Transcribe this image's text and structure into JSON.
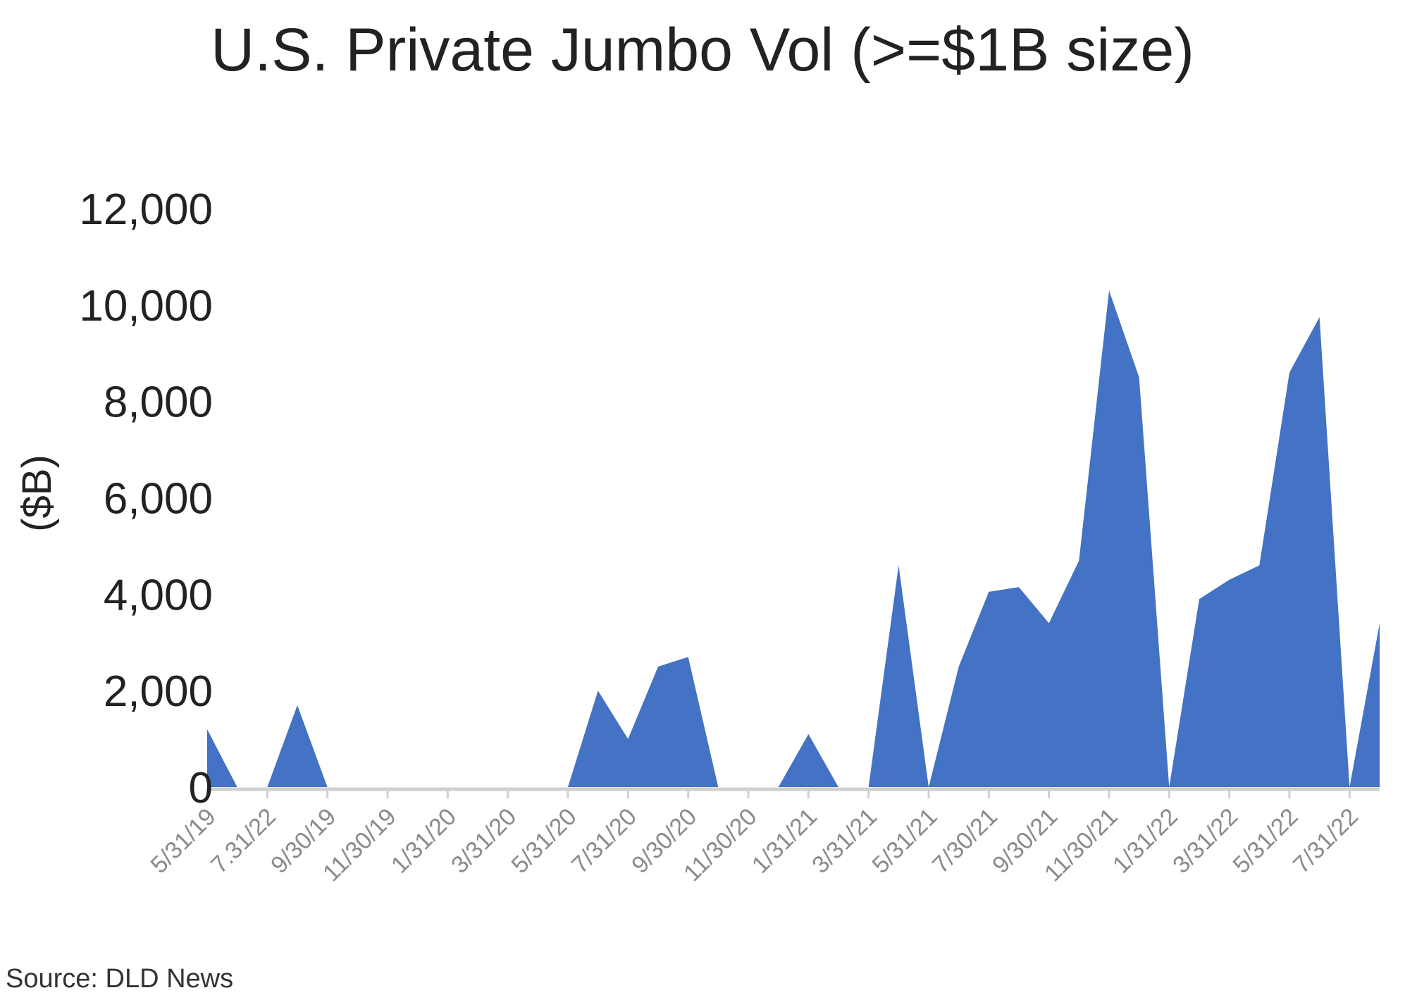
{
  "source": "Source: DLD News",
  "chart_data": {
    "type": "area",
    "title": "U.S. Private Jumbo Vol (>=$1B size)",
    "xlabel": "",
    "ylabel": "($B)",
    "ylim": [
      0,
      12000
    ],
    "yticks": [
      "0",
      "2,000",
      "4,000",
      "6,000",
      "8,000",
      "10,000",
      "12,000"
    ],
    "ytick_values": [
      0,
      2000,
      4000,
      6000,
      8000,
      10000,
      12000
    ],
    "xtick_labels": [
      "5/31/19",
      "7.31/22",
      "9/30/19",
      "11/30/19",
      "1/31/20",
      "3/31/20",
      "5/31/20",
      "7/31/20",
      "9/30/20",
      "11/30/20",
      "1/31/21",
      "3/31/21",
      "5/31/21",
      "7/30/21",
      "9/30/21",
      "11/30/21",
      "1/31/22",
      "3/31/22",
      "5/31/22",
      "7/31/22"
    ],
    "color": "#4472C4",
    "grid": false,
    "legend": "none",
    "series": [
      {
        "values": [
          1200,
          0,
          0,
          1700,
          0,
          0,
          0,
          0,
          0,
          0,
          0,
          0,
          0,
          2000,
          1000,
          2500,
          2700,
          0,
          0,
          0,
          1100,
          0,
          0,
          4600,
          0,
          2500,
          4050,
          4150,
          3400,
          4700,
          10300,
          8500,
          0,
          3900,
          4300,
          4600,
          8600,
          9750,
          0,
          3400
        ]
      }
    ]
  }
}
